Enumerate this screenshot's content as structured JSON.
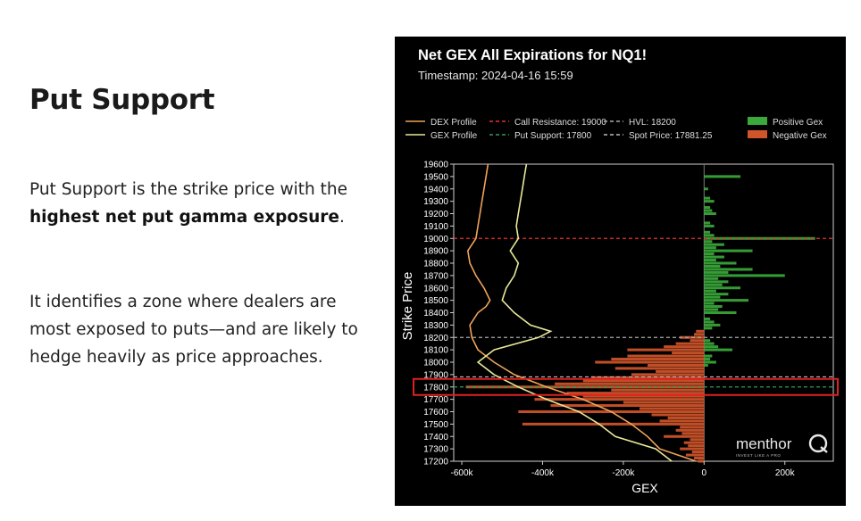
{
  "slide": {
    "heading": "Put Support",
    "para1_a": "Put Support is the strike price with the ",
    "para1_b": "highest net put gamma exposure",
    "para1_c": ".",
    "para2": "It identifies a zone where dealers are most exposed to puts—and are likely to hedge heavily as price approaches."
  },
  "chart_data": {
    "type": "bar",
    "orientation": "horizontal",
    "title": "Net GEX All Expirations for NQ1!",
    "subtitle": "Timestamp: 2024-04-16 15:59",
    "xlabel": "GEX",
    "ylabel": "Strike Price",
    "xlim": [
      -620000,
      320000
    ],
    "ylim": [
      17200,
      19600
    ],
    "x_ticks": [
      -600000,
      -400000,
      -200000,
      0,
      200000
    ],
    "x_tick_labels": [
      "-600k",
      "-400k",
      "-200k",
      "0",
      "200k"
    ],
    "y_ticks": [
      17200,
      17300,
      17400,
      17500,
      17600,
      17700,
      17800,
      17900,
      18000,
      18100,
      18200,
      18300,
      18400,
      18500,
      18600,
      18700,
      18800,
      18900,
      19000,
      19100,
      19200,
      19300,
      19400,
      19500,
      19600
    ],
    "legend_position": "top",
    "legend": [
      {
        "label": "DEX Profile",
        "kind": "line",
        "color": "#f0a35a"
      },
      {
        "label": "Call Resistance: 19000",
        "kind": "dash",
        "color": "#e83030"
      },
      {
        "label": "HVL: 18200",
        "kind": "dash",
        "color": "#aaaaaa"
      },
      {
        "label": "Positive Gex",
        "kind": "patch",
        "color": "#3aa83a"
      },
      {
        "label": "GEX Profile",
        "kind": "line",
        "color": "#e8e89a"
      },
      {
        "label": "Put Support: 17800",
        "kind": "dash",
        "color": "#2e9e5e"
      },
      {
        "label": "Spot Price: 17881.25",
        "kind": "dash",
        "color": "#bbbbbb"
      },
      {
        "label": "Negative Gex",
        "kind": "patch",
        "color": "#d0552a"
      }
    ],
    "levels": {
      "call_resistance": 19000,
      "hvl": 18200,
      "put_support": 17800,
      "spot_price": 17881.25
    },
    "highlight_strike": 17800,
    "bars": [
      {
        "strike": 17200,
        "value": -15000
      },
      {
        "strike": 17225,
        "value": -25000
      },
      {
        "strike": 17250,
        "value": -45000
      },
      {
        "strike": 17275,
        "value": -30000
      },
      {
        "strike": 17300,
        "value": -60000
      },
      {
        "strike": 17325,
        "value": -40000
      },
      {
        "strike": 17350,
        "value": -50000
      },
      {
        "strike": 17375,
        "value": -35000
      },
      {
        "strike": 17400,
        "value": -100000
      },
      {
        "strike": 17425,
        "value": -55000
      },
      {
        "strike": 17450,
        "value": -70000
      },
      {
        "strike": 17475,
        "value": -60000
      },
      {
        "strike": 17500,
        "value": -450000
      },
      {
        "strike": 17525,
        "value": -110000
      },
      {
        "strike": 17550,
        "value": -90000
      },
      {
        "strike": 17575,
        "value": -130000
      },
      {
        "strike": 17600,
        "value": -460000
      },
      {
        "strike": 17625,
        "value": -160000
      },
      {
        "strike": 17650,
        "value": -380000
      },
      {
        "strike": 17675,
        "value": -200000
      },
      {
        "strike": 17700,
        "value": -420000
      },
      {
        "strike": 17725,
        "value": -300000
      },
      {
        "strike": 17750,
        "value": -340000
      },
      {
        "strike": 17775,
        "value": -230000
      },
      {
        "strike": 17800,
        "value": -590000
      },
      {
        "strike": 17825,
        "value": -370000
      },
      {
        "strike": 17850,
        "value": -300000
      },
      {
        "strike": 17875,
        "value": -280000
      },
      {
        "strike": 17900,
        "value": -180000
      },
      {
        "strike": 17925,
        "value": -120000
      },
      {
        "strike": 17950,
        "value": -220000
      },
      {
        "strike": 17975,
        "value": -140000
      },
      {
        "strike": 18000,
        "value": -270000
      },
      {
        "strike": 18025,
        "value": -230000
      },
      {
        "strike": 18050,
        "value": -190000
      },
      {
        "strike": 18075,
        "value": -80000
      },
      {
        "strike": 18100,
        "value": -190000
      },
      {
        "strike": 18125,
        "value": -100000
      },
      {
        "strike": 18150,
        "value": -70000
      },
      {
        "strike": 18175,
        "value": -35000
      },
      {
        "strike": 18200,
        "value": -60000
      },
      {
        "strike": 18225,
        "value": -25000
      },
      {
        "strike": 18250,
        "value": -20000
      },
      {
        "strike": 17975,
        "value": 10000
      },
      {
        "strike": 18000,
        "value": 30000
      },
      {
        "strike": 18025,
        "value": 15000
      },
      {
        "strike": 18050,
        "value": 20000
      },
      {
        "strike": 18100,
        "value": 70000
      },
      {
        "strike": 18125,
        "value": 35000
      },
      {
        "strike": 18150,
        "value": 25000
      },
      {
        "strike": 18175,
        "value": 15000
      },
      {
        "strike": 18275,
        "value": 20000
      },
      {
        "strike": 18300,
        "value": 40000
      },
      {
        "strike": 18325,
        "value": 25000
      },
      {
        "strike": 18350,
        "value": 15000
      },
      {
        "strike": 18400,
        "value": 80000
      },
      {
        "strike": 18425,
        "value": 35000
      },
      {
        "strike": 18450,
        "value": 45000
      },
      {
        "strike": 18475,
        "value": 25000
      },
      {
        "strike": 18500,
        "value": 110000
      },
      {
        "strike": 18525,
        "value": 40000
      },
      {
        "strike": 18550,
        "value": 60000
      },
      {
        "strike": 18575,
        "value": 30000
      },
      {
        "strike": 18600,
        "value": 90000
      },
      {
        "strike": 18625,
        "value": 45000
      },
      {
        "strike": 18650,
        "value": 60000
      },
      {
        "strike": 18675,
        "value": 35000
      },
      {
        "strike": 18700,
        "value": 200000
      },
      {
        "strike": 18725,
        "value": 60000
      },
      {
        "strike": 18750,
        "value": 120000
      },
      {
        "strike": 18775,
        "value": 40000
      },
      {
        "strike": 18800,
        "value": 80000
      },
      {
        "strike": 18825,
        "value": 30000
      },
      {
        "strike": 18850,
        "value": 50000
      },
      {
        "strike": 18875,
        "value": 25000
      },
      {
        "strike": 18900,
        "value": 120000
      },
      {
        "strike": 18925,
        "value": 30000
      },
      {
        "strike": 18950,
        "value": 50000
      },
      {
        "strike": 18975,
        "value": 20000
      },
      {
        "strike": 19000,
        "value": 275000
      },
      {
        "strike": 19025,
        "value": 25000
      },
      {
        "strike": 19050,
        "value": 15000
      },
      {
        "strike": 19100,
        "value": 25000
      },
      {
        "strike": 19125,
        "value": 15000
      },
      {
        "strike": 19200,
        "value": 30000
      },
      {
        "strike": 19225,
        "value": 20000
      },
      {
        "strike": 19250,
        "value": 15000
      },
      {
        "strike": 19300,
        "value": 25000
      },
      {
        "strike": 19325,
        "value": 15000
      },
      {
        "strike": 19400,
        "value": 10000
      },
      {
        "strike": 19500,
        "value": 90000
      }
    ],
    "series": [
      {
        "name": "DEX Profile",
        "color": "#f0a35a",
        "points": [
          [
            -20000,
            17200
          ],
          [
            -110000,
            17300
          ],
          [
            -140000,
            17400
          ],
          [
            -180000,
            17500
          ],
          [
            -230000,
            17600
          ],
          [
            -300000,
            17700
          ],
          [
            -390000,
            17800
          ],
          [
            -470000,
            17900
          ],
          [
            -520000,
            18000
          ],
          [
            -560000,
            18100
          ],
          [
            -575000,
            18200
          ],
          [
            -580000,
            18300
          ],
          [
            -560000,
            18400
          ],
          [
            -540000,
            18450
          ],
          [
            -530000,
            18500
          ],
          [
            -545000,
            18600
          ],
          [
            -565000,
            18700
          ],
          [
            -580000,
            18800
          ],
          [
            -585000,
            18900
          ],
          [
            -565000,
            19000
          ],
          [
            -560000,
            19100
          ],
          [
            -555000,
            19200
          ],
          [
            -550000,
            19300
          ],
          [
            -545000,
            19400
          ],
          [
            -540000,
            19500
          ],
          [
            -535000,
            19600
          ]
        ]
      },
      {
        "name": "GEX Profile",
        "color": "#e8e89a",
        "points": [
          [
            -80000,
            17200
          ],
          [
            -120000,
            17300
          ],
          [
            -220000,
            17400
          ],
          [
            -260000,
            17500
          ],
          [
            -310000,
            17600
          ],
          [
            -390000,
            17700
          ],
          [
            -460000,
            17800
          ],
          [
            -520000,
            17900
          ],
          [
            -560000,
            18000
          ],
          [
            -520000,
            18100
          ],
          [
            -410000,
            18200
          ],
          [
            -380000,
            18250
          ],
          [
            -430000,
            18300
          ],
          [
            -470000,
            18400
          ],
          [
            -500000,
            18500
          ],
          [
            -490000,
            18600
          ],
          [
            -470000,
            18700
          ],
          [
            -460000,
            18800
          ],
          [
            -480000,
            18900
          ],
          [
            -460000,
            19000
          ],
          [
            -465000,
            19100
          ],
          [
            -460000,
            19200
          ],
          [
            -455000,
            19300
          ],
          [
            -450000,
            19400
          ],
          [
            -445000,
            19500
          ],
          [
            -440000,
            19600
          ]
        ]
      }
    ]
  },
  "branding": {
    "logo_text": "menthor",
    "logo_letter": "Q",
    "tagline": "INVEST LIKE A PRO"
  }
}
